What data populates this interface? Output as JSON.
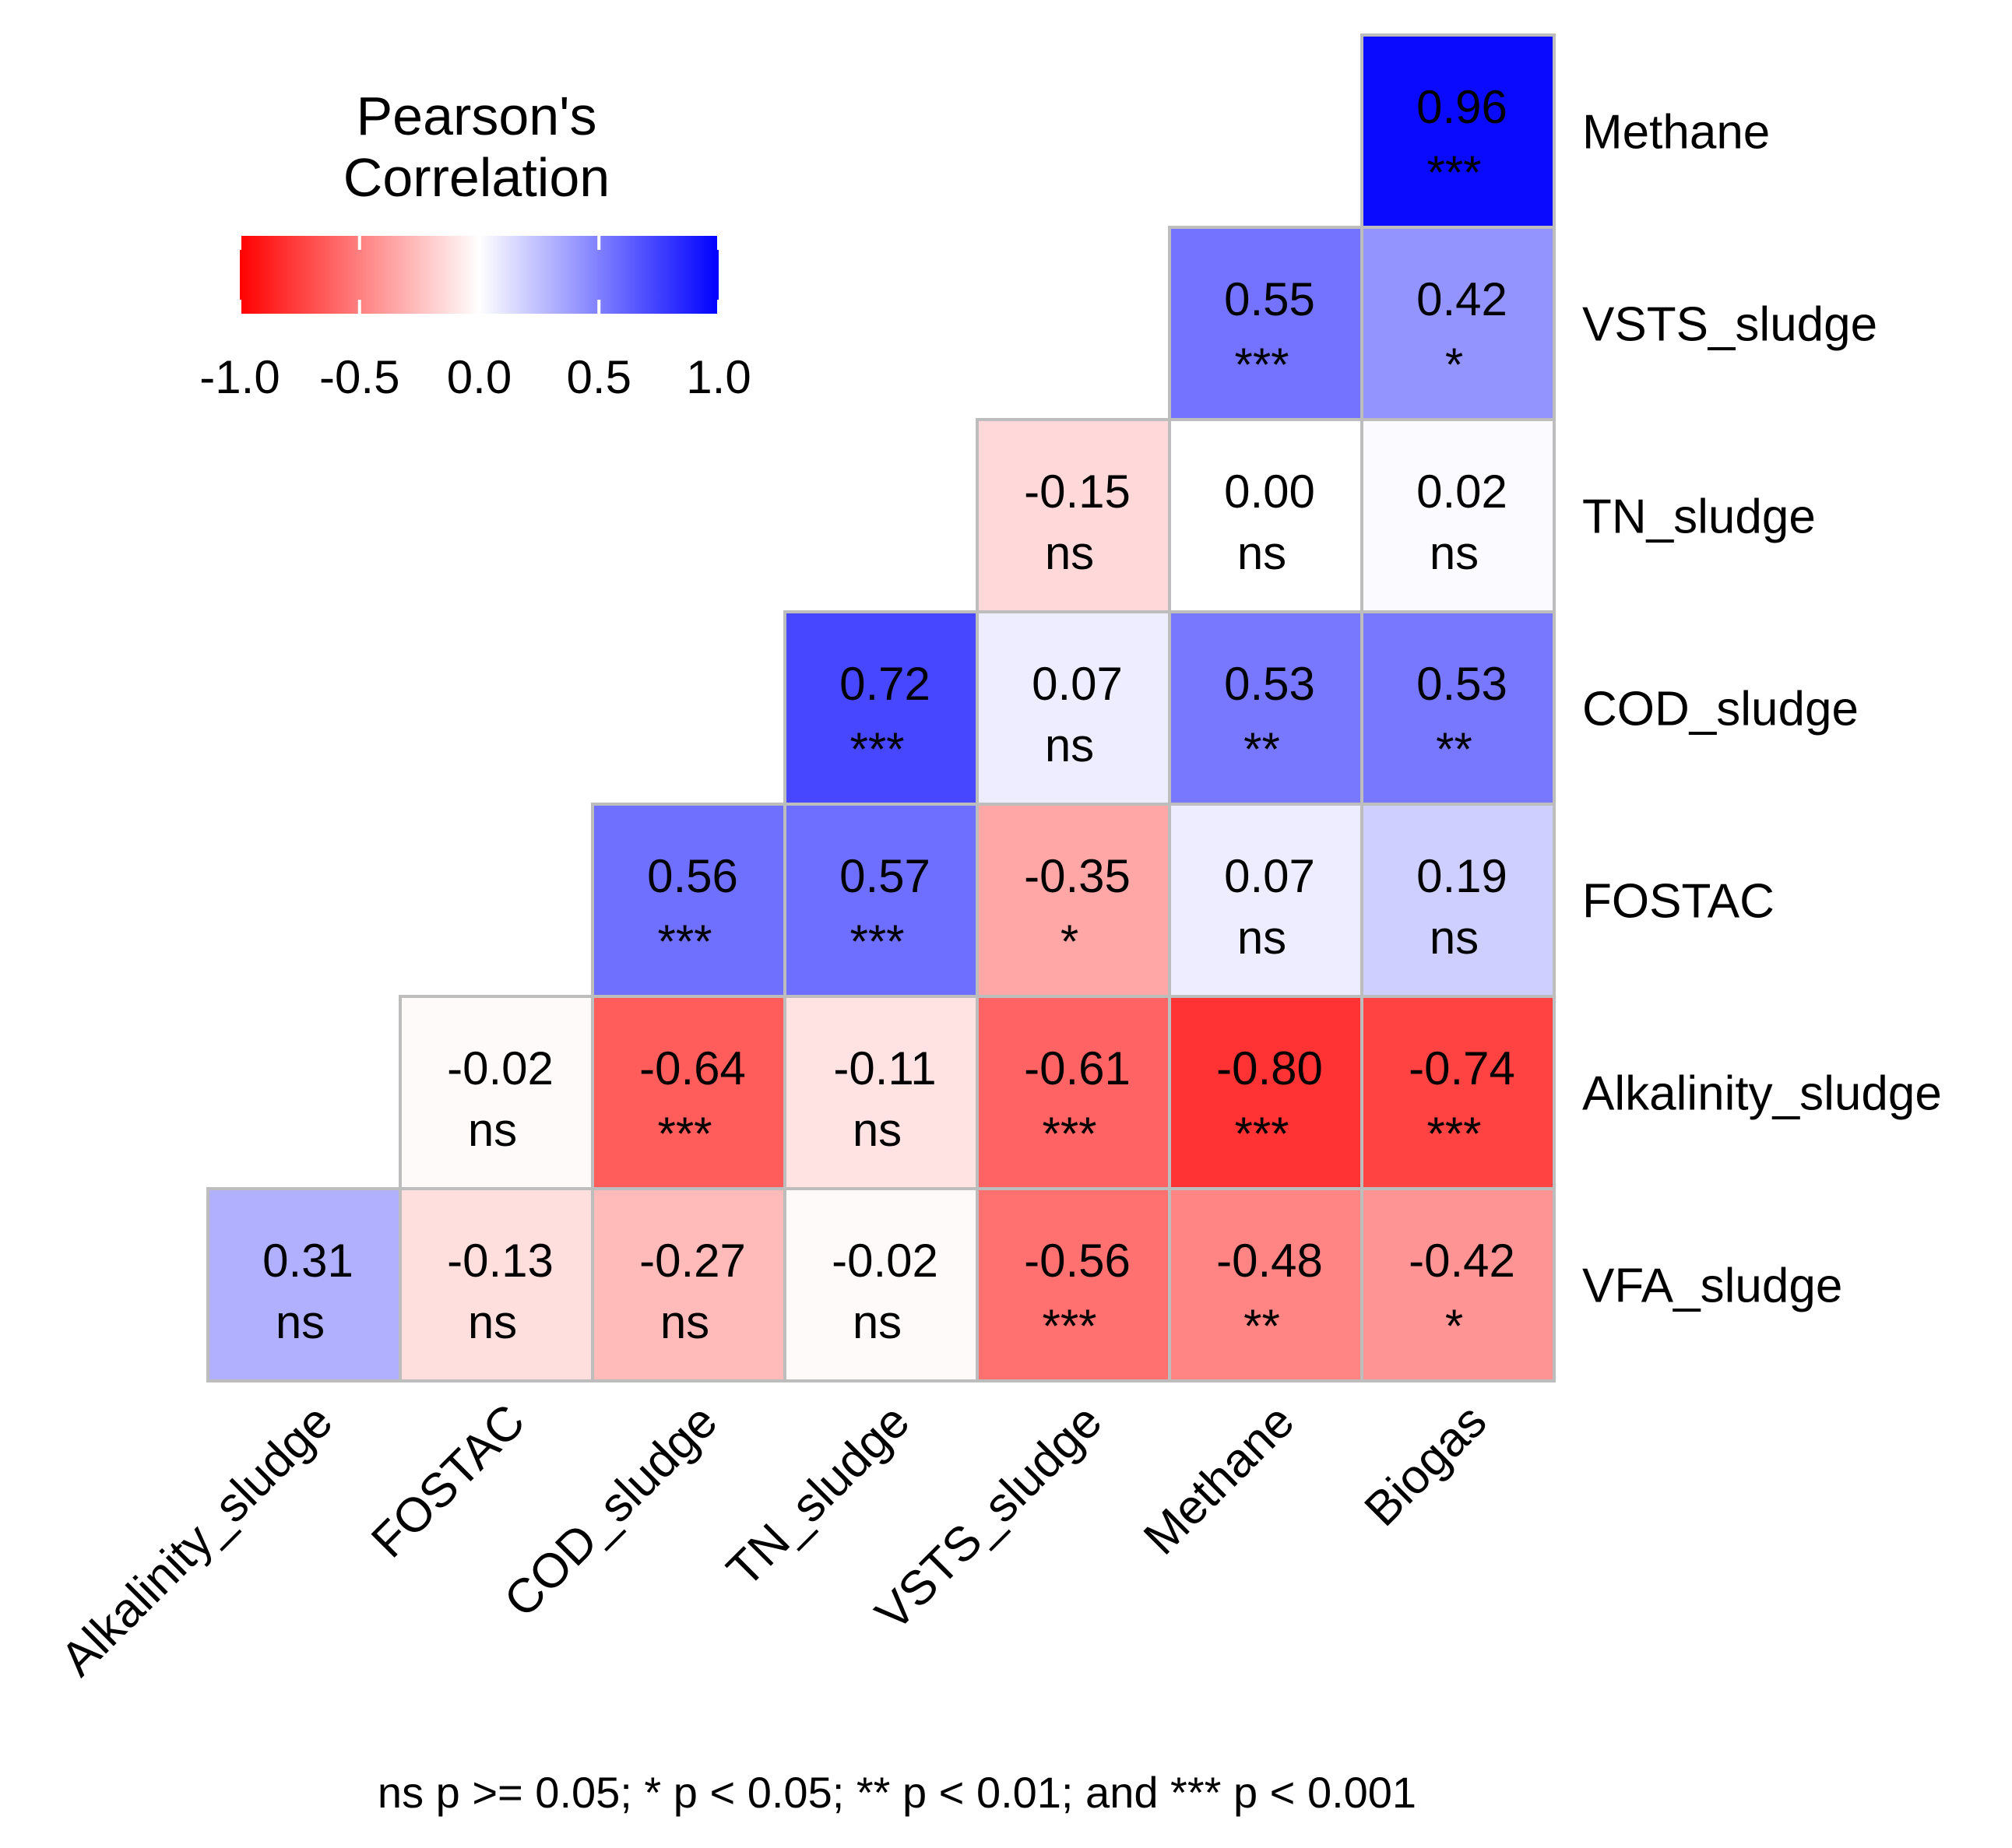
{
  "chart_data": {
    "type": "heatmap",
    "title": "",
    "legend": {
      "title_lines": [
        "Pearson's",
        "Correlation"
      ],
      "ticks": [
        -1.0,
        -0.5,
        0.0,
        0.5,
        1.0
      ],
      "tick_labels": [
        "-1.0",
        "-0.5",
        "0.0",
        "0.5",
        "1.0"
      ],
      "range": [
        -1.0,
        1.0
      ],
      "colors": {
        "low": "#ff0000",
        "mid": "#ffffff",
        "high": "#0000ff"
      },
      "placement": "top-left"
    },
    "x_labels": [
      "Alkalinity_sludge",
      "FOSTAC",
      "COD_sludge",
      "TN_sludge",
      "VSTS_sludge",
      "Methane",
      "Biogas"
    ],
    "y_labels": [
      "Methane",
      "VSTS_sludge",
      "TN_sludge",
      "COD_sludge",
      "FOSTAC",
      "Alkalinity_sludge",
      "VFA_sludge"
    ],
    "cells": [
      {
        "row": "Methane",
        "col": "Biogas",
        "r": 0.96,
        "label": "0.96",
        "sig": "***"
      },
      {
        "row": "VSTS_sludge",
        "col": "Methane",
        "r": 0.55,
        "label": "0.55",
        "sig": "***"
      },
      {
        "row": "VSTS_sludge",
        "col": "Biogas",
        "r": 0.42,
        "label": "0.42",
        "sig": "*"
      },
      {
        "row": "TN_sludge",
        "col": "VSTS_sludge",
        "r": -0.15,
        "label": "-0.15",
        "sig": "ns"
      },
      {
        "row": "TN_sludge",
        "col": "Methane",
        "r": 0.0,
        "label": "0.00",
        "sig": "ns"
      },
      {
        "row": "TN_sludge",
        "col": "Biogas",
        "r": 0.02,
        "label": "0.02",
        "sig": "ns"
      },
      {
        "row": "COD_sludge",
        "col": "TN_sludge",
        "r": 0.72,
        "label": "0.72",
        "sig": "***"
      },
      {
        "row": "COD_sludge",
        "col": "VSTS_sludge",
        "r": 0.07,
        "label": "0.07",
        "sig": "ns"
      },
      {
        "row": "COD_sludge",
        "col": "Methane",
        "r": 0.53,
        "label": "0.53",
        "sig": "**"
      },
      {
        "row": "COD_sludge",
        "col": "Biogas",
        "r": 0.53,
        "label": "0.53",
        "sig": "**"
      },
      {
        "row": "FOSTAC",
        "col": "COD_sludge",
        "r": 0.56,
        "label": "0.56",
        "sig": "***"
      },
      {
        "row": "FOSTAC",
        "col": "TN_sludge",
        "r": 0.57,
        "label": "0.57",
        "sig": "***"
      },
      {
        "row": "FOSTAC",
        "col": "VSTS_sludge",
        "r": -0.35,
        "label": "-0.35",
        "sig": "*"
      },
      {
        "row": "FOSTAC",
        "col": "Methane",
        "r": 0.07,
        "label": "0.07",
        "sig": "ns"
      },
      {
        "row": "FOSTAC",
        "col": "Biogas",
        "r": 0.19,
        "label": "0.19",
        "sig": "ns"
      },
      {
        "row": "Alkalinity_sludge",
        "col": "FOSTAC",
        "r": -0.02,
        "label": "-0.02",
        "sig": "ns"
      },
      {
        "row": "Alkalinity_sludge",
        "col": "COD_sludge",
        "r": -0.64,
        "label": "-0.64",
        "sig": "***"
      },
      {
        "row": "Alkalinity_sludge",
        "col": "TN_sludge",
        "r": -0.11,
        "label": "-0.11",
        "sig": "ns"
      },
      {
        "row": "Alkalinity_sludge",
        "col": "VSTS_sludge",
        "r": -0.61,
        "label": "-0.61",
        "sig": "***"
      },
      {
        "row": "Alkalinity_sludge",
        "col": "Methane",
        "r": -0.8,
        "label": "-0.80",
        "sig": "***"
      },
      {
        "row": "Alkalinity_sludge",
        "col": "Biogas",
        "r": -0.74,
        "label": "-0.74",
        "sig": "***"
      },
      {
        "row": "VFA_sludge",
        "col": "Alkalinity_sludge",
        "r": 0.31,
        "label": "0.31",
        "sig": "ns"
      },
      {
        "row": "VFA_sludge",
        "col": "FOSTAC",
        "r": -0.13,
        "label": "-0.13",
        "sig": "ns"
      },
      {
        "row": "VFA_sludge",
        "col": "COD_sludge",
        "r": -0.27,
        "label": "-0.27",
        "sig": "ns"
      },
      {
        "row": "VFA_sludge",
        "col": "TN_sludge",
        "r": -0.02,
        "label": "-0.02",
        "sig": "ns"
      },
      {
        "row": "VFA_sludge",
        "col": "VSTS_sludge",
        "r": -0.56,
        "label": "-0.56",
        "sig": "***"
      },
      {
        "row": "VFA_sludge",
        "col": "Methane",
        "r": -0.48,
        "label": "-0.48",
        "sig": "**"
      },
      {
        "row": "VFA_sludge",
        "col": "Biogas",
        "r": -0.42,
        "label": "-0.42",
        "sig": "*"
      }
    ],
    "footnote": "ns p >= 0.05; * p < 0.05; ** p < 0.01; and *** p < 0.001"
  }
}
